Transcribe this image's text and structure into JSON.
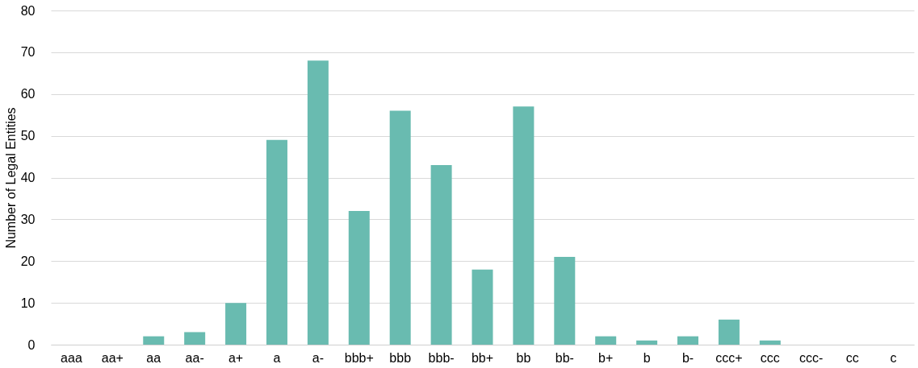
{
  "chart_data": {
    "type": "bar",
    "ylabel": "Number of Legal Entities",
    "categories": [
      "aaa",
      "aa+",
      "aa",
      "aa-",
      "a+",
      "a",
      "a-",
      "bbb+",
      "bbb",
      "bbb-",
      "bb+",
      "bb",
      "bb-",
      "b+",
      "b",
      "b-",
      "ccc+",
      "ccc",
      "ccc-",
      "cc",
      "c"
    ],
    "values": [
      0,
      0,
      2,
      3,
      10,
      49,
      68,
      32,
      56,
      43,
      18,
      57,
      21,
      2,
      1,
      2,
      6,
      1,
      0,
      0,
      0
    ],
    "color": "#69bbb0",
    "ylim": [
      0,
      80
    ],
    "yticks": [
      0,
      10,
      20,
      30,
      40,
      50,
      60,
      70,
      80
    ],
    "grid": "y"
  }
}
